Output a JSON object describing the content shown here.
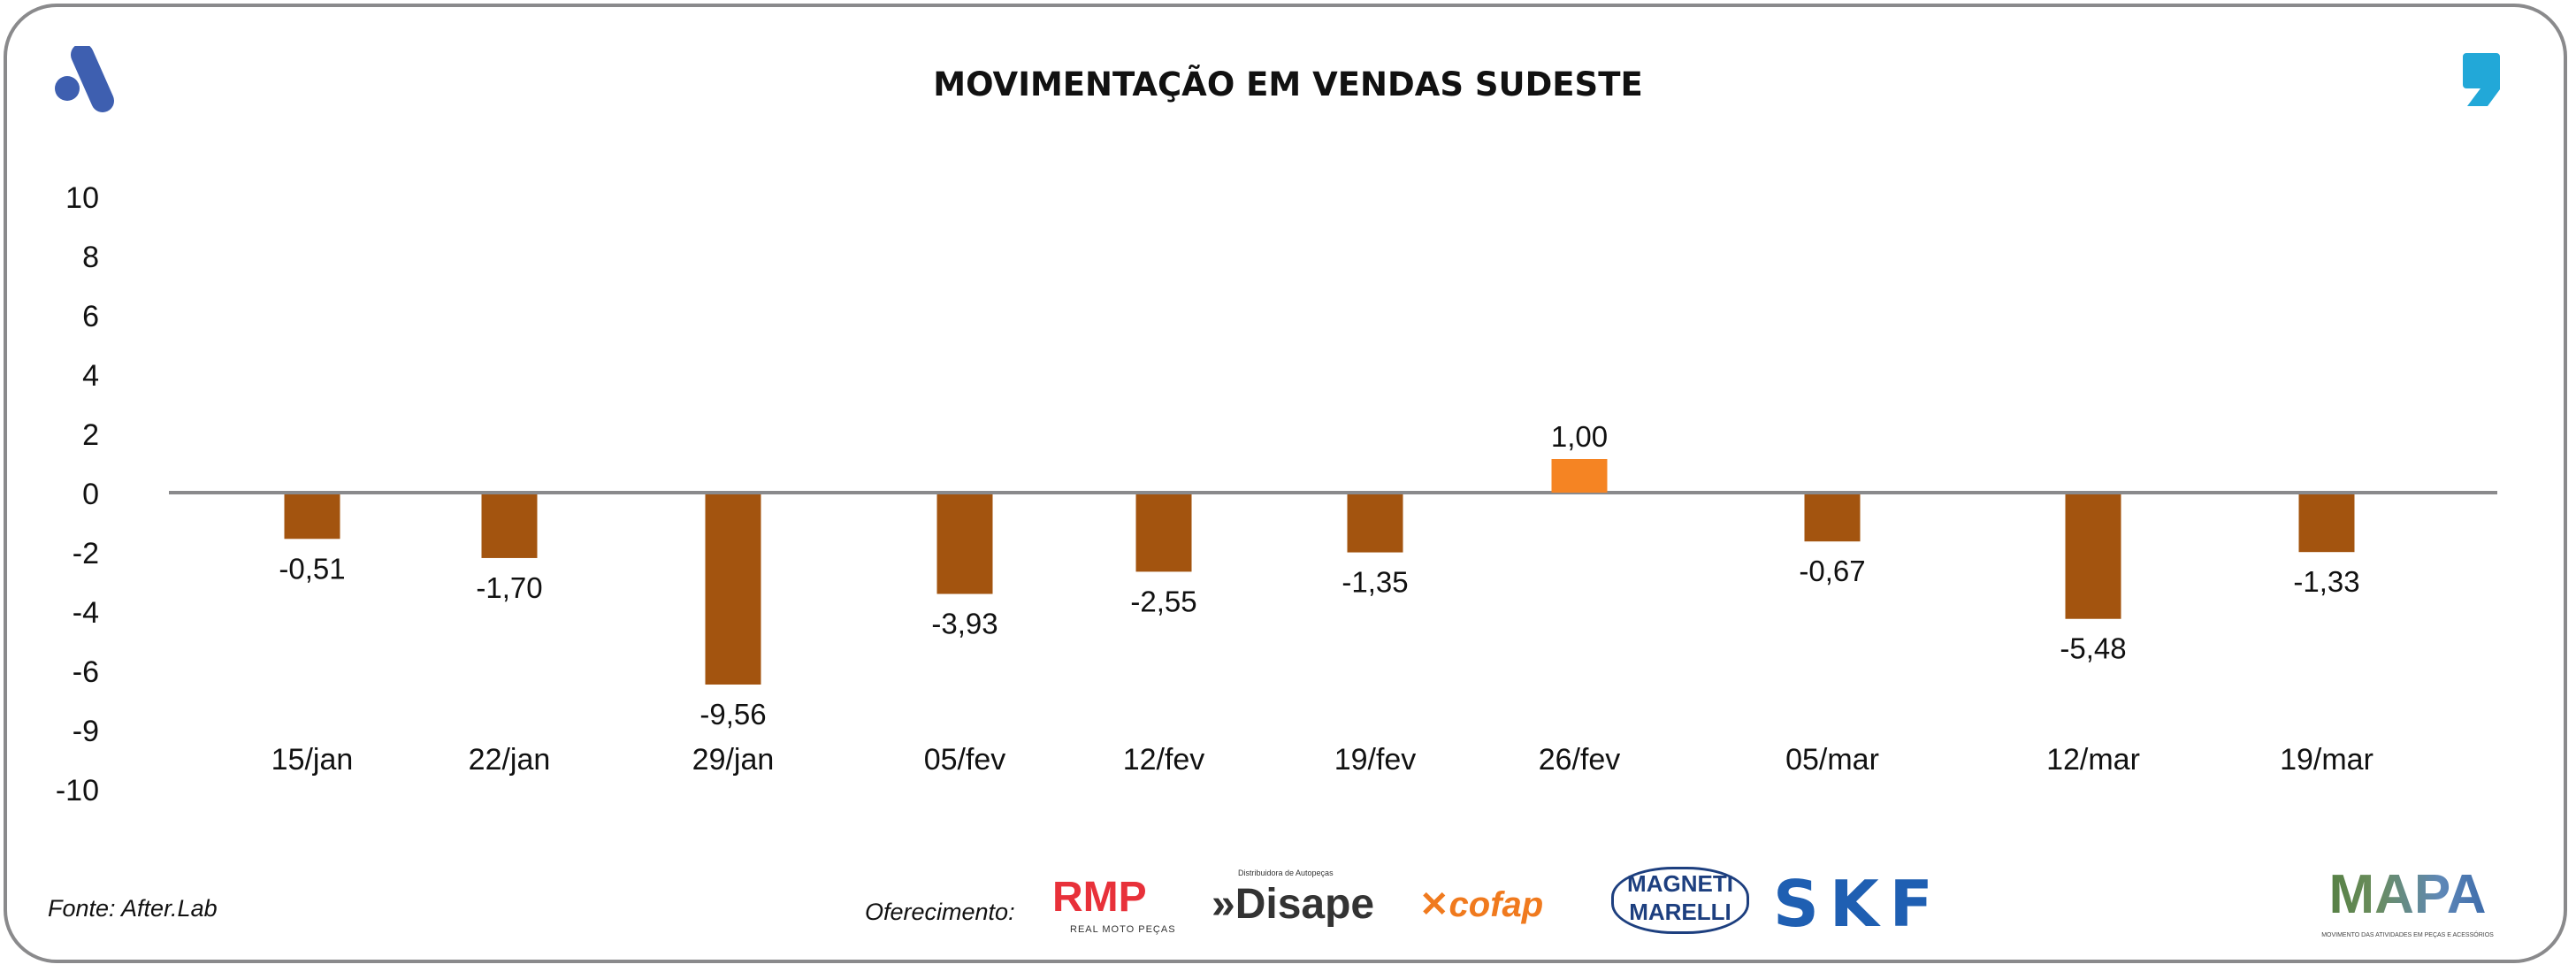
{
  "title": "MOVIMENTAÇÃO EM VENDAS SUDESTE",
  "footer": {
    "source": "Fonte: After.Lab",
    "sponsor_label": "Oferecimento:",
    "sponsors": [
      "RMP",
      "REAL MOTO PEÇAS",
      "Disape",
      "Distribuidora de Autopeças",
      "cofap",
      "MAGNETI",
      "MARELLI",
      "SKF"
    ],
    "mapa_logo": "MAPA",
    "mapa_tagline": "MOVIMENTO DAS ATIVIDADES EM PEÇAS E ACESSÓRIOS"
  },
  "colors": {
    "negative": "#a3540f",
    "positive": "#f58423",
    "zero_line": "#8a8a8c",
    "brand_blue": "#3e5fb0",
    "brand_cyan": "#22a8d8"
  },
  "chart_data": {
    "type": "bar",
    "title": "MOVIMENTAÇÃO EM VENDAS SUDESTE",
    "categories": [
      "15/jan",
      "22/jan",
      "29/jan",
      "05/fev",
      "12/fev",
      "19/fev",
      "26/fev",
      "05/mar",
      "12/mar",
      "19/mar"
    ],
    "values": [
      -0.51,
      -1.7,
      -9.56,
      -3.93,
      -2.55,
      -1.35,
      1.0,
      -0.67,
      -5.48,
      -1.33
    ],
    "labels": [
      "-0,51",
      "-1,70",
      "-9,56",
      "-3,93",
      "-2,55",
      "-1,35",
      "1,00",
      "-0,67",
      "-5,48",
      "-1,33"
    ],
    "y_ticks": [
      "10",
      "8",
      "6",
      "4",
      "2",
      "0",
      "-2",
      "-4",
      "-6",
      "-9",
      "-10"
    ],
    "ylim": [
      -10,
      10
    ],
    "xlabel": "",
    "ylabel": "",
    "grid": false,
    "legend": "none"
  }
}
